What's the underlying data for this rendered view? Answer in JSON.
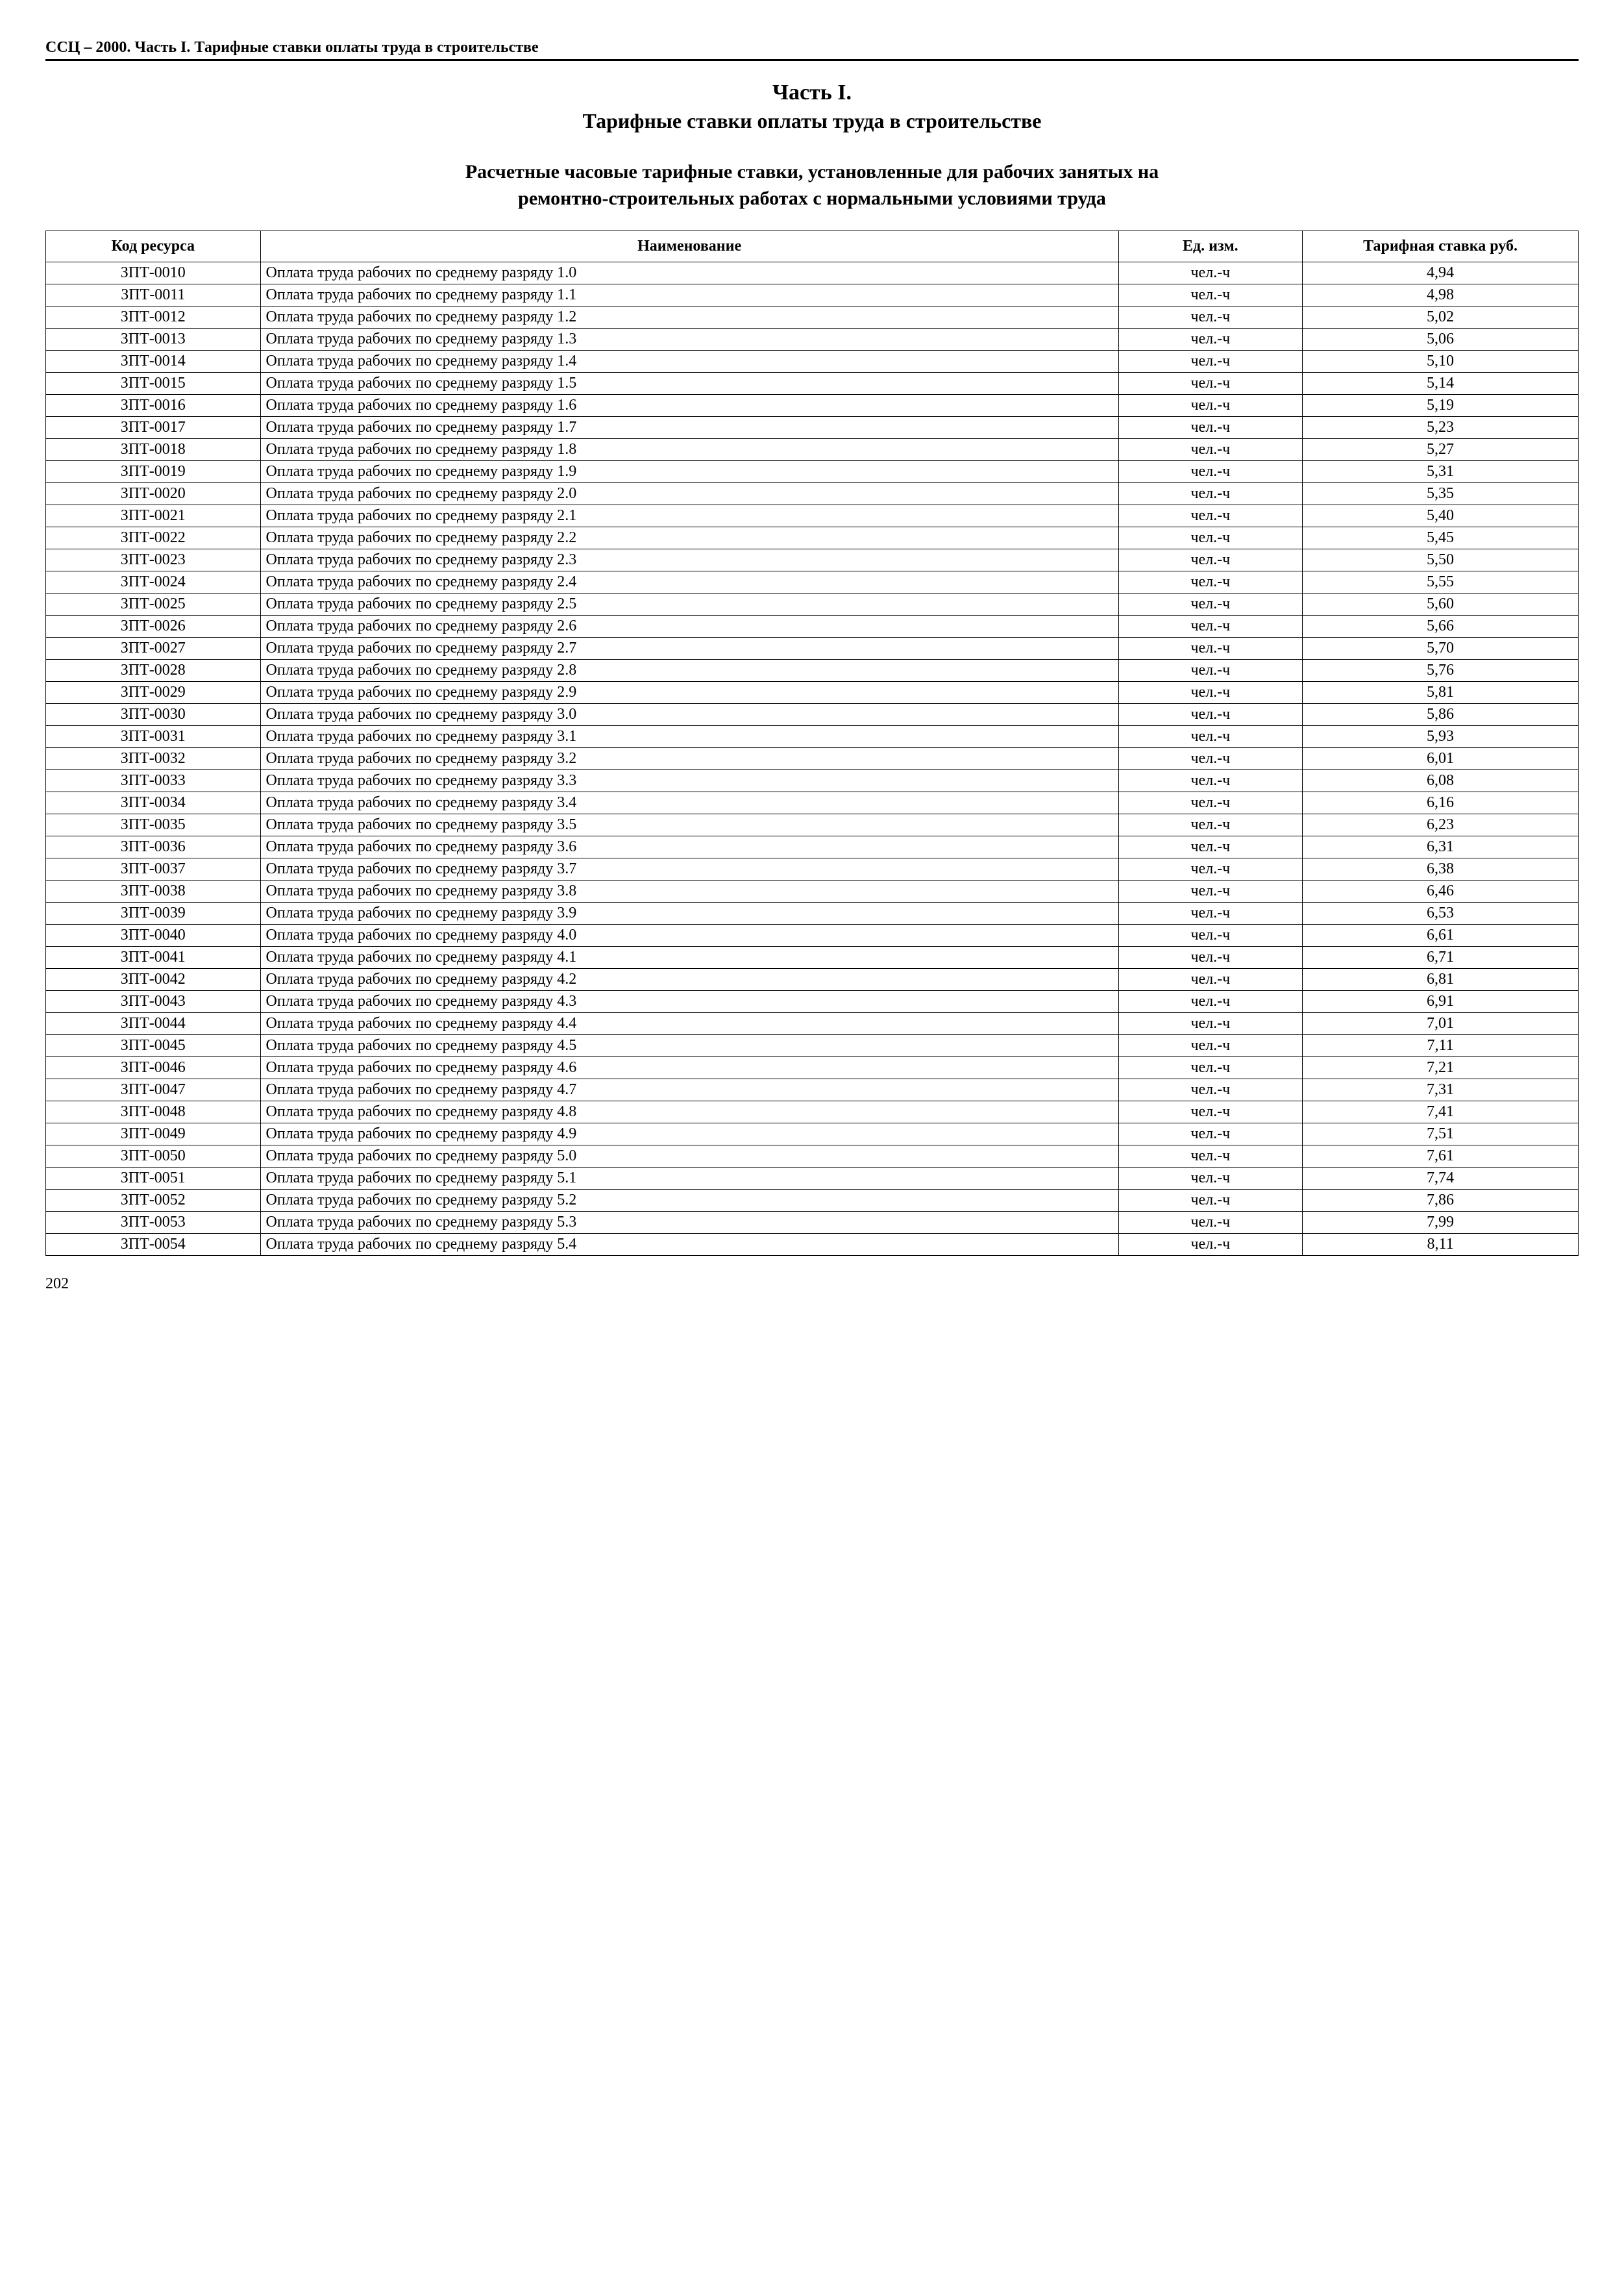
{
  "header": {
    "running": "ССЦ – 2000. Часть I. Тарифные ставки оплаты труда в строительстве",
    "part_title": "Часть I.",
    "part_subtitle": "Тарифные ставки оплаты труда в строительстве",
    "section_title": "Расчетные часовые тарифные ставки, установленные для рабочих занятых на",
    "section_subtitle": "ремонтно-строительных работах с нормальными условиями труда"
  },
  "table": {
    "columns": [
      "Код ресурса",
      "Наименование",
      "Ед. изм.",
      "Тарифная ставка руб."
    ],
    "col_widths_pct": [
      14,
      56,
      12,
      18
    ],
    "border_color": "#000000",
    "font_size_pt": 12,
    "rows": [
      {
        "code": "ЗПТ-0010",
        "name": "Оплата труда рабочих по среднему разряду 1.0",
        "unit": "чел.-ч",
        "rate": "4,94"
      },
      {
        "code": "ЗПТ-0011",
        "name": "Оплата труда рабочих по среднему разряду 1.1",
        "unit": "чел.-ч",
        "rate": "4,98"
      },
      {
        "code": "ЗПТ-0012",
        "name": "Оплата труда рабочих по среднему разряду 1.2",
        "unit": "чел.-ч",
        "rate": "5,02"
      },
      {
        "code": "ЗПТ-0013",
        "name": "Оплата труда рабочих по среднему разряду 1.3",
        "unit": "чел.-ч",
        "rate": "5,06"
      },
      {
        "code": "ЗПТ-0014",
        "name": "Оплата труда рабочих по среднему разряду 1.4",
        "unit": "чел.-ч",
        "rate": "5,10"
      },
      {
        "code": "ЗПТ-0015",
        "name": "Оплата труда рабочих по среднему разряду 1.5",
        "unit": "чел.-ч",
        "rate": "5,14"
      },
      {
        "code": "ЗПТ-0016",
        "name": "Оплата труда рабочих по среднему разряду 1.6",
        "unit": "чел.-ч",
        "rate": "5,19"
      },
      {
        "code": "ЗПТ-0017",
        "name": "Оплата труда рабочих по среднему разряду 1.7",
        "unit": "чел.-ч",
        "rate": "5,23"
      },
      {
        "code": "ЗПТ-0018",
        "name": "Оплата труда рабочих по среднему разряду 1.8",
        "unit": "чел.-ч",
        "rate": "5,27"
      },
      {
        "code": "ЗПТ-0019",
        "name": "Оплата труда рабочих по среднему разряду 1.9",
        "unit": "чел.-ч",
        "rate": "5,31"
      },
      {
        "code": "ЗПТ-0020",
        "name": "Оплата труда рабочих по среднему разряду 2.0",
        "unit": "чел.-ч",
        "rate": "5,35"
      },
      {
        "code": "ЗПТ-0021",
        "name": "Оплата труда рабочих по среднему разряду 2.1",
        "unit": "чел.-ч",
        "rate": "5,40"
      },
      {
        "code": "ЗПТ-0022",
        "name": "Оплата труда рабочих по среднему разряду 2.2",
        "unit": "чел.-ч",
        "rate": "5,45"
      },
      {
        "code": "ЗПТ-0023",
        "name": "Оплата труда рабочих по среднему разряду 2.3",
        "unit": "чел.-ч",
        "rate": "5,50"
      },
      {
        "code": "ЗПТ-0024",
        "name": "Оплата труда рабочих по среднему разряду 2.4",
        "unit": "чел.-ч",
        "rate": "5,55"
      },
      {
        "code": "ЗПТ-0025",
        "name": "Оплата труда рабочих по среднему разряду 2.5",
        "unit": "чел.-ч",
        "rate": "5,60"
      },
      {
        "code": "ЗПТ-0026",
        "name": "Оплата труда рабочих по среднему разряду 2.6",
        "unit": "чел.-ч",
        "rate": "5,66"
      },
      {
        "code": "ЗПТ-0027",
        "name": "Оплата труда рабочих по среднему разряду 2.7",
        "unit": "чел.-ч",
        "rate": "5,70"
      },
      {
        "code": "ЗПТ-0028",
        "name": "Оплата труда рабочих по среднему разряду 2.8",
        "unit": "чел.-ч",
        "rate": "5,76"
      },
      {
        "code": "ЗПТ-0029",
        "name": "Оплата труда рабочих по среднему разряду 2.9",
        "unit": "чел.-ч",
        "rate": "5,81"
      },
      {
        "code": "ЗПТ-0030",
        "name": "Оплата труда рабочих по среднему разряду 3.0",
        "unit": "чел.-ч",
        "rate": "5,86"
      },
      {
        "code": "ЗПТ-0031",
        "name": "Оплата труда рабочих по среднему разряду 3.1",
        "unit": "чел.-ч",
        "rate": "5,93"
      },
      {
        "code": "ЗПТ-0032",
        "name": "Оплата труда рабочих по среднему разряду 3.2",
        "unit": "чел.-ч",
        "rate": "6,01"
      },
      {
        "code": "ЗПТ-0033",
        "name": "Оплата труда рабочих по среднему разряду 3.3",
        "unit": "чел.-ч",
        "rate": "6,08"
      },
      {
        "code": "ЗПТ-0034",
        "name": "Оплата труда рабочих по среднему разряду 3.4",
        "unit": "чел.-ч",
        "rate": "6,16"
      },
      {
        "code": "ЗПТ-0035",
        "name": "Оплата труда рабочих по среднему разряду 3.5",
        "unit": "чел.-ч",
        "rate": "6,23"
      },
      {
        "code": "ЗПТ-0036",
        "name": "Оплата труда рабочих по среднему разряду 3.6",
        "unit": "чел.-ч",
        "rate": "6,31"
      },
      {
        "code": "ЗПТ-0037",
        "name": "Оплата труда рабочих по среднему разряду 3.7",
        "unit": "чел.-ч",
        "rate": "6,38"
      },
      {
        "code": "ЗПТ-0038",
        "name": "Оплата труда рабочих по среднему разряду 3.8",
        "unit": "чел.-ч",
        "rate": "6,46"
      },
      {
        "code": "ЗПТ-0039",
        "name": "Оплата труда рабочих по среднему разряду 3.9",
        "unit": "чел.-ч",
        "rate": "6,53"
      },
      {
        "code": "ЗПТ-0040",
        "name": "Оплата труда рабочих по среднему разряду 4.0",
        "unit": "чел.-ч",
        "rate": "6,61"
      },
      {
        "code": "ЗПТ-0041",
        "name": "Оплата труда рабочих по среднему разряду 4.1",
        "unit": "чел.-ч",
        "rate": "6,71"
      },
      {
        "code": "ЗПТ-0042",
        "name": "Оплата труда рабочих по среднему разряду 4.2",
        "unit": "чел.-ч",
        "rate": "6,81"
      },
      {
        "code": "ЗПТ-0043",
        "name": "Оплата труда рабочих по среднему разряду 4.3",
        "unit": "чел.-ч",
        "rate": "6,91"
      },
      {
        "code": "ЗПТ-0044",
        "name": "Оплата труда рабочих по среднему разряду 4.4",
        "unit": "чел.-ч",
        "rate": "7,01"
      },
      {
        "code": "ЗПТ-0045",
        "name": "Оплата труда рабочих по среднему разряду 4.5",
        "unit": "чел.-ч",
        "rate": "7,11"
      },
      {
        "code": "ЗПТ-0046",
        "name": "Оплата труда рабочих по среднему разряду 4.6",
        "unit": "чел.-ч",
        "rate": "7,21"
      },
      {
        "code": "ЗПТ-0047",
        "name": "Оплата труда рабочих по среднему разряду 4.7",
        "unit": "чел.-ч",
        "rate": "7,31"
      },
      {
        "code": "ЗПТ-0048",
        "name": "Оплата труда рабочих по среднему разряду 4.8",
        "unit": "чел.-ч",
        "rate": "7,41"
      },
      {
        "code": "ЗПТ-0049",
        "name": "Оплата труда рабочих по среднему разряду 4.9",
        "unit": "чел.-ч",
        "rate": "7,51"
      },
      {
        "code": "ЗПТ-0050",
        "name": "Оплата труда рабочих по среднему разряду 5.0",
        "unit": "чел.-ч",
        "rate": "7,61"
      },
      {
        "code": "ЗПТ-0051",
        "name": "Оплата труда рабочих по среднему разряду 5.1",
        "unit": "чел.-ч",
        "rate": "7,74"
      },
      {
        "code": "ЗПТ-0052",
        "name": "Оплата труда рабочих по среднему разряду 5.2",
        "unit": "чел.-ч",
        "rate": "7,86"
      },
      {
        "code": "ЗПТ-0053",
        "name": "Оплата труда рабочих по среднему разряду 5.3",
        "unit": "чел.-ч",
        "rate": "7,99"
      },
      {
        "code": "ЗПТ-0054",
        "name": "Оплата труда рабочих по среднему разряду 5.4",
        "unit": "чел.-ч",
        "rate": "8,11"
      }
    ]
  },
  "footer": {
    "page_number": "202"
  }
}
